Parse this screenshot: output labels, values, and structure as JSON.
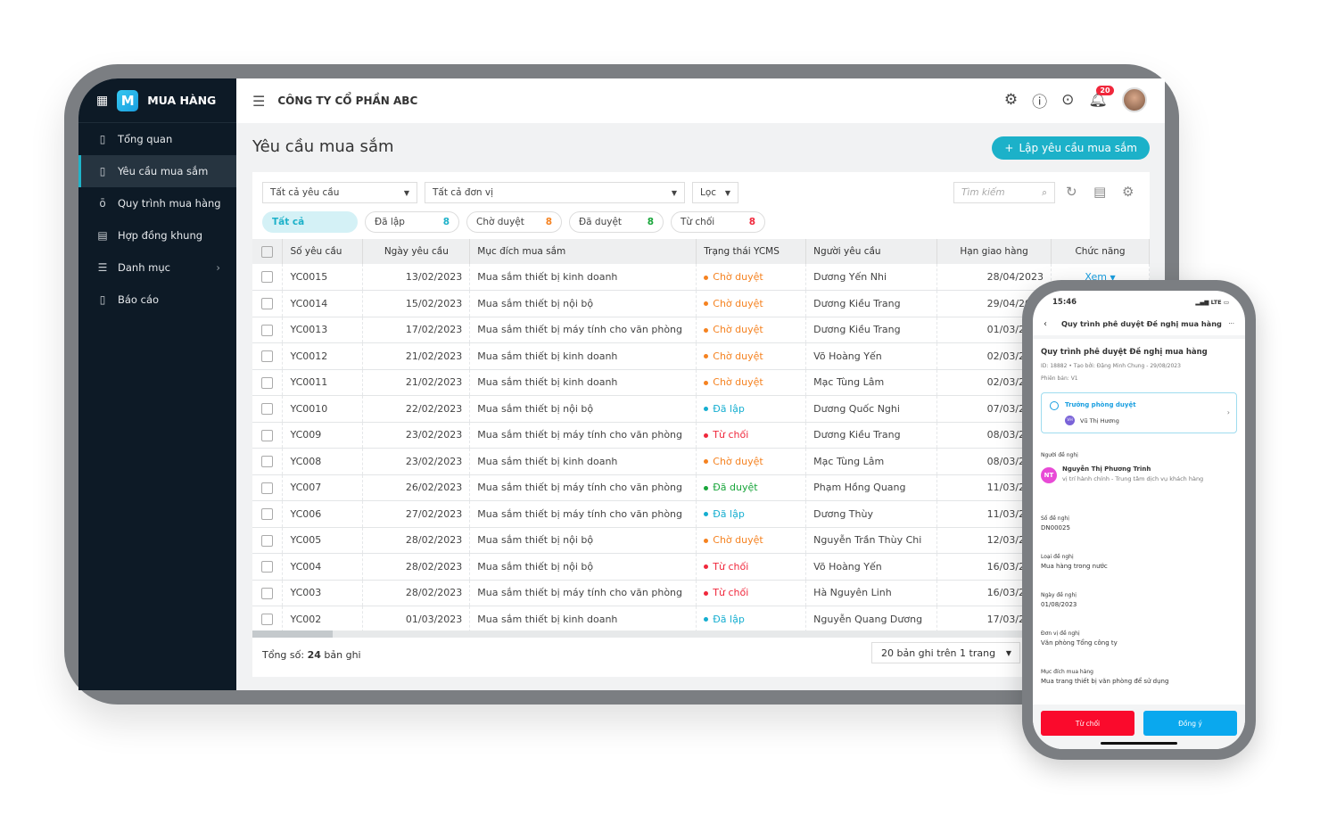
{
  "app": {
    "name": "MUA HÀNG",
    "logo_letter": "M"
  },
  "sidebar": {
    "items": [
      {
        "label": "Tổng quan",
        "icon": "clipboard-chart-icon"
      },
      {
        "label": "Yêu cầu mua sắm",
        "icon": "clipboard-plus-icon",
        "active": true
      },
      {
        "label": "Quy trình mua hàng",
        "icon": "process-icon"
      },
      {
        "label": "Hợp đồng khung",
        "icon": "contract-icon"
      },
      {
        "label": "Danh mục",
        "icon": "category-icon",
        "has_submenu": true
      },
      {
        "label": "Báo cáo",
        "icon": "report-icon"
      }
    ]
  },
  "header": {
    "company": "CÔNG TY CỔ PHẦN ABC",
    "notification_count": "20"
  },
  "page": {
    "title": "Yêu cầu mua sắm",
    "add_button": "Lập yêu cầu mua sắm"
  },
  "filters": {
    "request_type": "Tất cả yêu cầu",
    "unit": "Tất cả đơn vị",
    "filter": "Lọc",
    "search_placeholder": "Tìm kiếm"
  },
  "chips": [
    {
      "label": "Tất cả",
      "count": "",
      "color": "#1cb1c9"
    },
    {
      "label": "Đã lập",
      "count": "8",
      "color": "#1cb1c9"
    },
    {
      "label": "Chờ duyệt",
      "count": "8",
      "color": "#f58220"
    },
    {
      "label": "Đã duyệt",
      "count": "8",
      "color": "#18a53a"
    },
    {
      "label": "Từ chối",
      "count": "8",
      "color": "#f0283c"
    }
  ],
  "status_colors": {
    "Chờ duyệt": "#f58220",
    "Đã lập": "#15aed0",
    "Từ chối": "#f0283c",
    "Đã duyệt": "#18a53a"
  },
  "table": {
    "columns": [
      "Số yêu cầu",
      "Ngày yêu cầu",
      "Mục đích mua sắm",
      "Trạng thái YCMS",
      "Người yêu cầu",
      "Hạn giao hàng",
      "Chức năng"
    ],
    "action_label": "Xem",
    "rows": [
      [
        "YC0015",
        "13/02/2023",
        "Mua sắm thiết bị kinh doanh",
        "Chờ duyệt",
        "Dương Yến Nhi",
        "28/04/2023"
      ],
      [
        "YC0014",
        "15/02/2023",
        "Mua sắm thiết bị nội bộ",
        "Chờ duyệt",
        "Dương Kiều Trang",
        "29/04/2023"
      ],
      [
        "YC0013",
        "17/02/2023",
        "Mua sắm thiết bị máy tính cho văn phòng",
        "Chờ duyệt",
        "Dương Kiều Trang",
        "01/03/2023"
      ],
      [
        "YC0012",
        "21/02/2023",
        "Mua sắm thiết bị kinh doanh",
        "Chờ duyệt",
        "Võ Hoàng Yến",
        "02/03/2023"
      ],
      [
        "YC0011",
        "21/02/2023",
        "Mua sắm thiết bị kinh doanh",
        "Chờ duyệt",
        "Mạc Tùng Lâm",
        "02/03/2023"
      ],
      [
        "YC0010",
        "22/02/2023",
        "Mua sắm thiết bị nội bộ",
        "Đã lập",
        "Dương Quốc Nghi",
        "07/03/2023"
      ],
      [
        "YC009",
        "23/02/2023",
        "Mua sắm thiết bị máy tính cho văn phòng",
        "Từ chối",
        "Dương Kiều Trang",
        "08/03/2023"
      ],
      [
        "YC008",
        "23/02/2023",
        "Mua sắm thiết bị kinh doanh",
        "Chờ duyệt",
        "Mạc Tùng Lâm",
        "08/03/2023"
      ],
      [
        "YC007",
        "26/02/2023",
        "Mua sắm thiết bị máy tính cho văn phòng",
        "Đã duyệt",
        "Phạm Hồng Quang",
        "11/03/2023"
      ],
      [
        "YC006",
        "27/02/2023",
        "Mua sắm thiết bị máy tính cho văn phòng",
        "Đã lập",
        "Dương Thùy",
        "11/03/2023"
      ],
      [
        "YC005",
        "28/02/2023",
        "Mua sắm thiết bị nội bộ",
        "Chờ duyệt",
        "Nguyễn Trần Thùy Chi",
        "12/03/2023"
      ],
      [
        "YC004",
        "28/02/2023",
        "Mua sắm thiết bị nội bộ",
        "Từ chối",
        "Võ Hoàng Yến",
        "16/03/2023"
      ],
      [
        "YC003",
        "28/02/2023",
        "Mua sắm thiết bị máy tính cho văn phòng",
        "Từ chối",
        "Hà Nguyên Linh",
        "16/03/2023"
      ],
      [
        "YC002",
        "01/03/2023",
        "Mua sắm thiết bị kinh doanh",
        "Đã lập",
        "Nguyễn Quang Dương",
        "17/03/2023"
      ]
    ]
  },
  "footer": {
    "total_prefix": "Tổng số:",
    "total_count": "24",
    "total_suffix": "bản ghi",
    "page_size": "20 bản ghi trên 1 trang"
  },
  "phone": {
    "time": "15:46",
    "network": "LTE",
    "header_title": "Quy trình phê duyệt Đề nghị mua hàng",
    "title": "Quy trình phê duyệt Đề nghị mua hàng",
    "meta": "ID: 18882 • Tạo bởi: Đặng Minh Chung - 29/08/2023",
    "version": "Phiên bản: V1",
    "step": {
      "name": "Trưởng phòng duyệt",
      "assignee_initials": "VH",
      "assignee": "Vũ Thị Hương"
    },
    "requester_label": "Người đề nghị",
    "requester": {
      "initials": "NT",
      "name": "Nguyễn Thị Phương Trinh",
      "position": "vị trí hành chính - Trung tâm dịch vụ khách hàng"
    },
    "fields": [
      {
        "label": "Số đề nghị",
        "value": "DN00025"
      },
      {
        "label": "Loại đề nghị",
        "value": "Mua hàng trong nước"
      },
      {
        "label": "Ngày đề nghị",
        "value": "01/08/2023"
      },
      {
        "label": "Đơn vị đề nghị",
        "value": "Văn phòng Tổng công ty"
      },
      {
        "label": "Mục đích mua hàng",
        "value": "Mua trang thiết bị văn phòng để sử dụng"
      }
    ],
    "reject_button": "Từ chối",
    "approve_button": "Đồng ý"
  }
}
